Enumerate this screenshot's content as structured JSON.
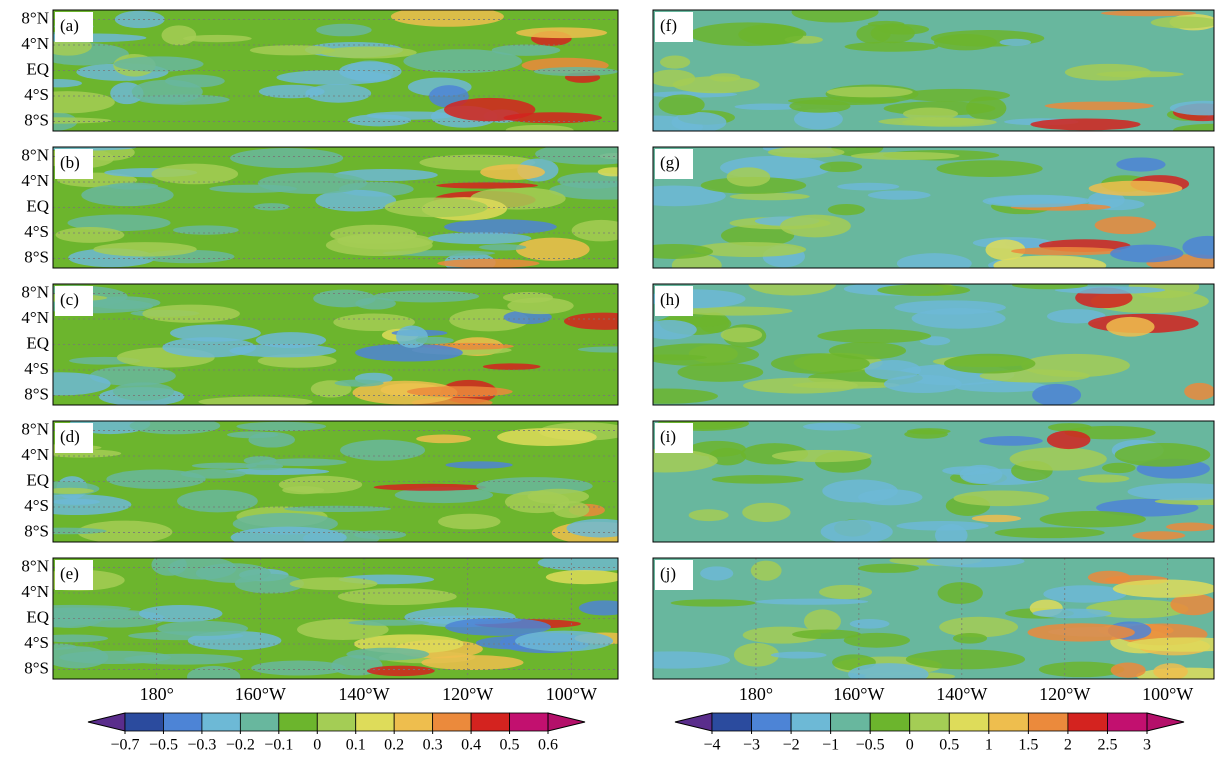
{
  "panels": [
    {
      "label": "(a)"
    },
    {
      "label": "(b)"
    },
    {
      "label": "(c)"
    },
    {
      "label": "(d)"
    },
    {
      "label": "(e)"
    },
    {
      "label": "(f)"
    },
    {
      "label": "(g)"
    },
    {
      "label": "(h)"
    },
    {
      "label": "(i)"
    },
    {
      "label": "(j)"
    }
  ],
  "lat_range": [
    -9.5,
    9.5
  ],
  "lon_range": [
    160,
    269
  ],
  "lat_ticks": [
    {
      "value": 8,
      "label": "8°N"
    },
    {
      "value": 4,
      "label": "4°N"
    },
    {
      "value": 0,
      "label": "EQ"
    },
    {
      "value": -4,
      "label": "4°S"
    },
    {
      "value": -8,
      "label": "8°S"
    }
  ],
  "lon_ticks": [
    {
      "value": 180,
      "label": "180°"
    },
    {
      "value": 200,
      "label": "160°W"
    },
    {
      "value": 220,
      "label": "140°W"
    },
    {
      "value": 240,
      "label": "120°W"
    },
    {
      "value": 260,
      "label": "100°W"
    }
  ],
  "colors": [
    "#5a2d8c",
    "#2b4b9e",
    "#4d84d6",
    "#6db9d6",
    "#68b79e",
    "#6cb52d",
    "#a4cd55",
    "#dedc5a",
    "#eebe4e",
    "#eb8a3c",
    "#d4231f",
    "#c2106f",
    "#b4106a"
  ],
  "colorbars": [
    {
      "ticks": [
        {
          "value": -0.7,
          "label": "−0.7"
        },
        {
          "value": -0.5,
          "label": "−0.5"
        },
        {
          "value": -0.3,
          "label": "−0.3"
        },
        {
          "value": -0.2,
          "label": "−0.2"
        },
        {
          "value": -0.1,
          "label": "−0.1"
        },
        0,
        0.1,
        0.2,
        0.3,
        0.4,
        0.5,
        0.6
      ]
    },
    {
      "ticks": [
        {
          "value": -4,
          "label": "−4"
        },
        {
          "value": -3,
          "label": "−3"
        },
        {
          "value": -2,
          "label": "−2"
        },
        {
          "value": -1,
          "label": "−1"
        },
        {
          "value": -0.5,
          "label": "−0.5"
        },
        0,
        0.5,
        1,
        1.5,
        2,
        2.5,
        3
      ]
    }
  ]
}
